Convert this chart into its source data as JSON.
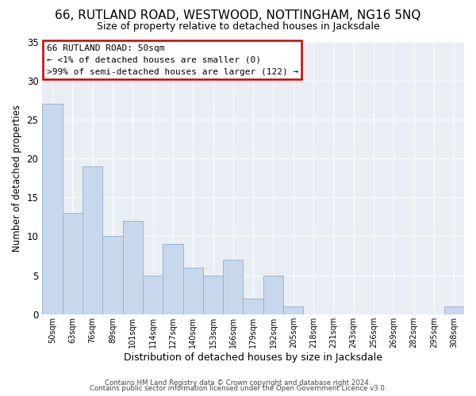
{
  "title": "66, RUTLAND ROAD, WESTWOOD, NOTTINGHAM, NG16 5NQ",
  "subtitle": "Size of property relative to detached houses in Jacksdale",
  "xlabel": "Distribution of detached houses by size in Jacksdale",
  "ylabel": "Number of detached properties",
  "bar_color": "#c8d8ec",
  "bar_edge_color": "#9ab4cc",
  "categories": [
    "50sqm",
    "63sqm",
    "76sqm",
    "89sqm",
    "101sqm",
    "114sqm",
    "127sqm",
    "140sqm",
    "153sqm",
    "166sqm",
    "179sqm",
    "192sqm",
    "205sqm",
    "218sqm",
    "231sqm",
    "243sqm",
    "256sqm",
    "269sqm",
    "282sqm",
    "295sqm",
    "308sqm"
  ],
  "values": [
    27,
    13,
    19,
    10,
    12,
    5,
    9,
    6,
    5,
    7,
    2,
    5,
    1,
    0,
    0,
    0,
    0,
    0,
    0,
    0,
    1
  ],
  "ylim": [
    0,
    35
  ],
  "yticks": [
    0,
    5,
    10,
    15,
    20,
    25,
    30,
    35
  ],
  "annotation_title": "66 RUTLAND ROAD: 50sqm",
  "annotation_line1": "← <1% of detached houses are smaller (0)",
  "annotation_line2": ">99% of semi-detached houses are larger (122) →",
  "annotation_box_color": "#ffffff",
  "annotation_border_color": "#cc0000",
  "footer_line1": "Contains HM Land Registry data © Crown copyright and database right 2024.",
  "footer_line2": "Contains public sector information licensed under the Open Government Licence v3.0.",
  "fig_background_color": "#ffffff",
  "plot_background_color": "#e8eef4",
  "grid_color": "#ffffff",
  "title_fontsize": 11,
  "subtitle_fontsize": 9
}
